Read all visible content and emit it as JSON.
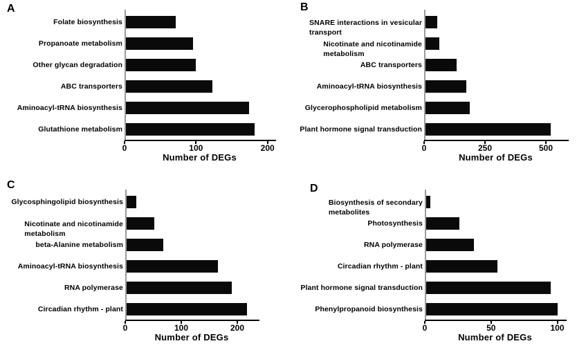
{
  "figure": {
    "background_color": "#ffffff",
    "bar_color": "#0a0a0a",
    "xaxis_color": "#000000",
    "yaxis_color": "#9a9a9a",
    "text_color": "#000000"
  },
  "chart_data": [
    {
      "type": "bar",
      "orientation": "horizontal",
      "panel_label": "A",
      "title": "",
      "categories": [
        "Folate biosynthesis",
        "Propanoate metabolism",
        "Other glycan degradation",
        "ABC transporters",
        "Aminoacyl-tRNA biosynthesis",
        "Glutathione metabolism"
      ],
      "values": [
        72,
        96,
        100,
        123,
        174,
        182
      ],
      "xlabel": "Number of DEGs",
      "ylabel": "",
      "xticks": [
        0,
        100,
        200
      ],
      "xlim": [
        0,
        210
      ],
      "grid": false,
      "legend": "none"
    },
    {
      "type": "bar",
      "orientation": "horizontal",
      "panel_label": "B",
      "title": "",
      "categories": [
        "SNARE interactions in vesicular\ntransport",
        "Nicotinate and nicotinamide\nmetabolism",
        "ABC transporters",
        "Aminoacyl-tRNA biosynthesis",
        "Glycerophospholipid metabolism",
        "Plant hormone signal transduction"
      ],
      "values": [
        54,
        62,
        133,
        172,
        187,
        520
      ],
      "xlabel": "Number of DEGs",
      "ylabel": "",
      "xticks": [
        0,
        250,
        500
      ],
      "xlim": [
        0,
        588
      ],
      "grid": false,
      "legend": "none"
    },
    {
      "type": "bar",
      "orientation": "horizontal",
      "panel_label": "C",
      "title": "",
      "categories": [
        "Glycosphingolipid biosynthesis",
        "Nicotinate and nicotinamide\nmetabolism",
        "beta-Alanine metabolism",
        "Aminoacyl-tRNA biosynthesis",
        "RNA polymerase",
        "Circadian rhythm - plant"
      ],
      "values": [
        20,
        52,
        68,
        165,
        190,
        217
      ],
      "xlabel": "Number of DEGs",
      "ylabel": "",
      "xticks": [
        0,
        100,
        200
      ],
      "xlim": [
        0,
        237
      ],
      "grid": false,
      "legend": "none"
    },
    {
      "type": "bar",
      "orientation": "horizontal",
      "panel_label": "D",
      "title": "",
      "categories": [
        "Biosynthesis of secondary\nmetabolites",
        "Photosynthesis",
        "RNA polymerase",
        "Circadian rhythm - plant",
        "Plant hormone signal transduction",
        "Phenylpropanoid biosynthesis"
      ],
      "values": [
        4,
        26,
        37,
        55,
        95,
        100
      ],
      "xlabel": "Number of DEGs",
      "ylabel": "",
      "xticks": [
        0,
        50,
        100
      ],
      "xlim": [
        0,
        106
      ],
      "grid": false,
      "legend": "none"
    }
  ]
}
